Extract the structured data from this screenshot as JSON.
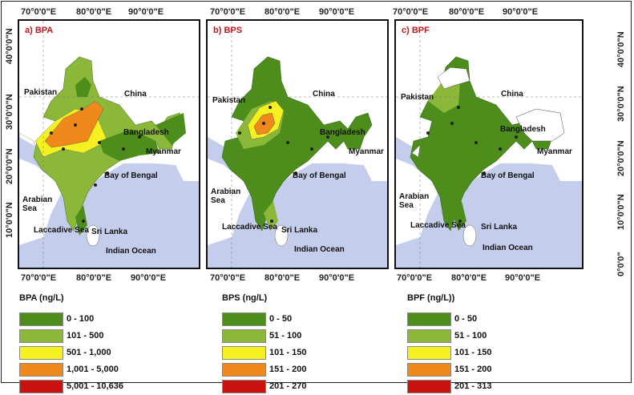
{
  "axis": {
    "top_lons": [
      "70°0'0\"E",
      "80°0'0\"E",
      "90°0'0\"E"
    ],
    "bottom_lons": [
      "70°0'0\"E",
      "80°0'0\"E",
      "90°0'0\"E"
    ],
    "left_lats": [
      "40°0'0\"N",
      "30°0'0\"N",
      "20°0'0\"N",
      "10°0'0\"N"
    ],
    "right_lats": [
      "40°0'0\"N",
      "30°0'0\"N",
      "20°0'0\"N",
      "10°0'0\"N",
      "0°0'0\""
    ]
  },
  "map_labels": {
    "pakistan": "Pakistan",
    "china": "China",
    "bangladesh": "Bangladesh",
    "myanmar": "Myanmar",
    "bay_of_bengal": "Bay of Bengal",
    "arabian_sea": "Arabian Sea",
    "laccadive_sea": "Laccadive Sea",
    "sri_lanka": "Sri Lanka",
    "indian_ocean": "Indian Ocean"
  },
  "colors": {
    "sea": "#c5cdec",
    "land_outside": "#ffffff",
    "class1": "#4d8d1c",
    "class2": "#8cb83a",
    "class3": "#f5f020",
    "class4": "#f0891b",
    "class5": "#c9120f"
  },
  "panels": [
    {
      "title": "a) BPA",
      "legend_title": "BPA (ng/L)",
      "classes": [
        "0 - 100",
        "101 - 500",
        "501 - 1,000",
        "1,001 - 5,000",
        "5,001 - 10,636"
      ]
    },
    {
      "title": "b) BPS",
      "legend_title": "BPS (ng/L)",
      "classes": [
        "0 - 50",
        "51 - 100",
        "101 - 150",
        "151 - 200",
        "201 - 270"
      ]
    },
    {
      "title": "c) BPF",
      "legend_title": "BPF (ng/L))",
      "classes": [
        "0 - 50",
        "51 - 100",
        "101 - 150",
        "151 - 200",
        "201 - 313"
      ]
    }
  ]
}
